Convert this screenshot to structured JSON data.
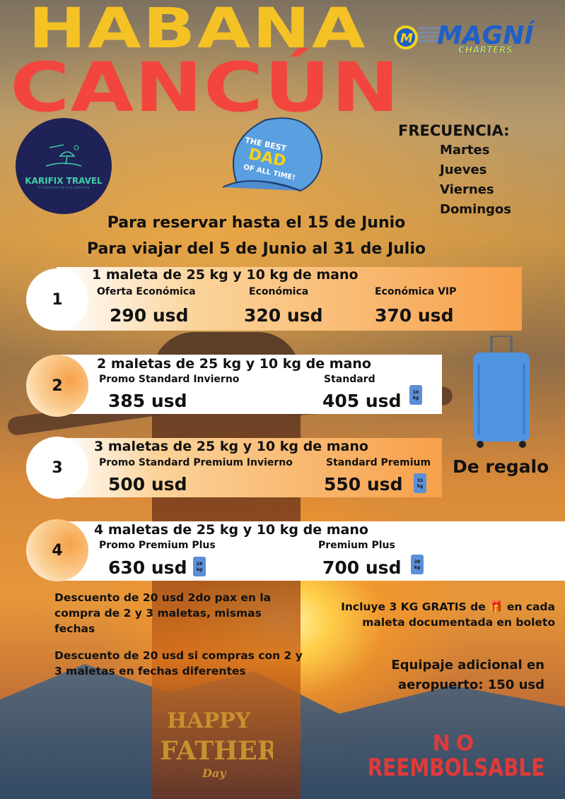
{
  "header": {
    "line1": "HABANA",
    "line2": "CANCÚN"
  },
  "logos": {
    "airline": "MAGNÍ CHARTERS",
    "agency_name": "KARIFIX TRAVEL",
    "agency_tagline": "El comienzo de una aventura",
    "cap": "THE BEST DAD OF ALL TIME!",
    "fathers_day": "HAPPY FATHER'S Day"
  },
  "frequency": {
    "title": "FRECUENCIA:",
    "days": [
      "Martes",
      "Jueves",
      "Viernes",
      "Domingos"
    ]
  },
  "dates": {
    "booking": "Para reservar hasta el 15 de Junio",
    "travel": "Para viajar del 5 de Junio al 31 de Julio"
  },
  "packages": [
    {
      "number": "1",
      "title": "1 maleta de 25 kg y 10 kg de mano",
      "options": [
        {
          "label": "Oferta Económica",
          "price": "290 usd"
        },
        {
          "label": "Económica",
          "price": "320 usd"
        },
        {
          "label": "Económica VIP",
          "price": "370 usd"
        }
      ]
    },
    {
      "number": "2",
      "title": "2 maletas de 25 kg y 10 kg de mano",
      "options": [
        {
          "label": "Promo Standard Invierno",
          "price": "385 usd"
        },
        {
          "label": "Standard",
          "price": "405 usd",
          "bag": "10 kg"
        }
      ]
    },
    {
      "number": "3",
      "title": "3 maletas de 25 kg y 10 kg de mano",
      "options": [
        {
          "label": "Promo Standard Premium Invierno",
          "price": "500 usd"
        },
        {
          "label": "Standard Premium",
          "price": "550 usd",
          "bag": "15 kg"
        }
      ]
    },
    {
      "number": "4",
      "title": "4 maletas de 25 kg y 10 kg de mano",
      "options": [
        {
          "label": "Promo Premium Plus",
          "price": "630 usd",
          "bag": "28 kg"
        },
        {
          "label": "Premium Plus",
          "price": "700 usd",
          "bag": "28 kg"
        }
      ]
    }
  ],
  "gift": "De regalo",
  "notes": {
    "discount1": "Descuento de 20 usd 2do pax en la compra de 2 y 3 maletas, mismas fechas",
    "discount2": "Descuento de 20 usd si compras con 2 y 3 maletas en fechas diferentes",
    "free_kg_a": "Incluye 3 KG GRATIS  de",
    "free_kg_b": "en cada maleta documentada en boleto",
    "extra_bag": "Equipaje adicional en aeropuerto: 150 usd"
  },
  "footer": {
    "no": "NO",
    "reembolsable": "REEMBOLSABLE"
  },
  "colors": {
    "yellow": "#f5c226",
    "red": "#f2453d",
    "orange": "#f7a04a",
    "navy": "#1e2257",
    "bag_blue": "#5b8fd8"
  }
}
